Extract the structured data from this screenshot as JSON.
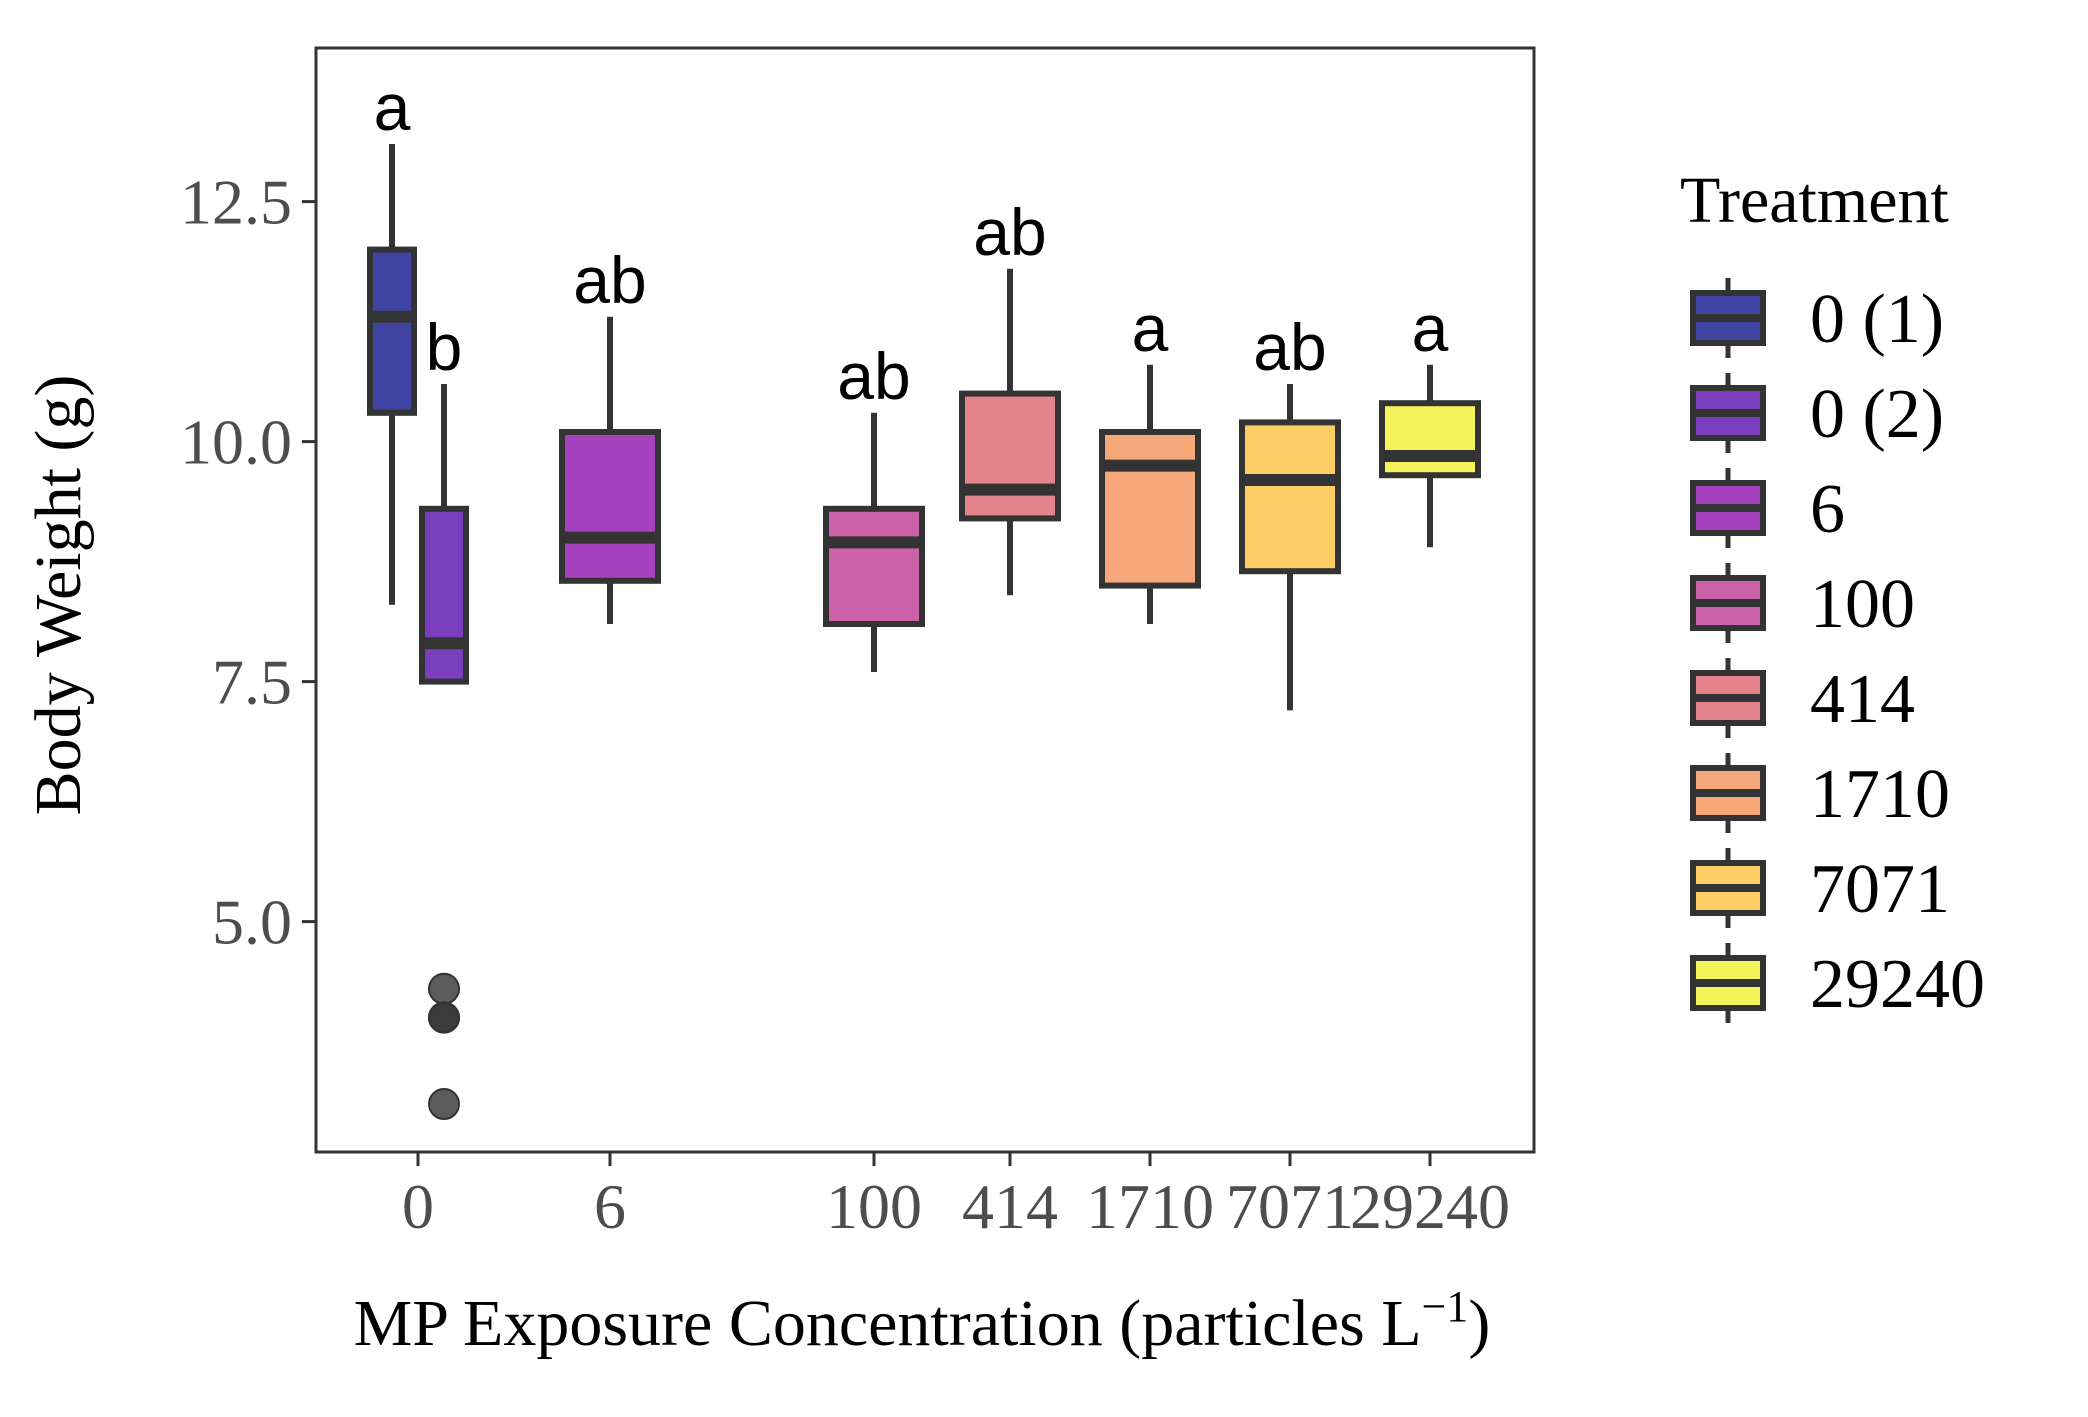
{
  "chart_data": {
    "type": "boxplot",
    "title": "",
    "xlabel": "MP Exposure Concentration (particles L",
    "xlabel_superscript": "−1",
    "xlabel_suffix": ")",
    "ylabel": "Body Weight (g)",
    "ylim": [
      2.6,
      14.1
    ],
    "y_ticks": [
      "5.0",
      "7.5",
      "10.0",
      "12.5"
    ],
    "x_ticks": [
      "0",
      "6",
      "100",
      "414",
      "1710",
      "7071",
      "29240"
    ],
    "grid": false,
    "legend": {
      "title": "Treatment",
      "position": "right"
    },
    "series": [
      {
        "name": "0 (1)",
        "x_tick": "0",
        "color": "#3f44a3",
        "whisker_low": 8.3,
        "q1": 10.3,
        "median": 11.3,
        "q3": 12.0,
        "whisker_high": 13.1,
        "outliers": [],
        "letter": "a"
      },
      {
        "name": "0 (2)",
        "x_tick": "0",
        "color": "#7b3fbd",
        "whisker_low": 7.5,
        "q1": 7.5,
        "median": 7.9,
        "q3": 9.3,
        "whisker_high": 10.6,
        "outliers": [
          4.3,
          4.0,
          4.0,
          3.1
        ],
        "letter": "b"
      },
      {
        "name": "6",
        "x_tick": "6",
        "color": "#a641bd",
        "whisker_low": 8.1,
        "q1": 8.55,
        "median": 9.0,
        "q3": 10.1,
        "whisker_high": 11.3,
        "outliers": [],
        "letter": "ab"
      },
      {
        "name": "100",
        "x_tick": "100",
        "color": "#cc63a8",
        "whisker_low": 7.6,
        "q1": 8.1,
        "median": 8.95,
        "q3": 9.3,
        "whisker_high": 10.3,
        "outliers": [],
        "letter": "ab"
      },
      {
        "name": "414",
        "x_tick": "414",
        "color": "#e5838c",
        "whisker_low": 8.4,
        "q1": 9.2,
        "median": 9.5,
        "q3": 10.5,
        "whisker_high": 11.8,
        "outliers": [],
        "letter": "ab"
      },
      {
        "name": "1710",
        "x_tick": "1710",
        "color": "#f5a77a",
        "whisker_low": 8.1,
        "q1": 8.5,
        "median": 9.75,
        "q3": 10.1,
        "whisker_high": 10.8,
        "outliers": [],
        "letter": "a"
      },
      {
        "name": "7071",
        "x_tick": "7071",
        "color": "#fccd64",
        "whisker_low": 7.2,
        "q1": 8.65,
        "median": 9.6,
        "q3": 10.2,
        "whisker_high": 10.6,
        "outliers": [],
        "letter": "ab"
      },
      {
        "name": "29240",
        "x_tick": "29240",
        "color": "#f2f45a",
        "whisker_low": 8.9,
        "q1": 9.65,
        "median": 9.85,
        "q3": 10.4,
        "whisker_high": 10.8,
        "outliers": [],
        "letter": "a"
      }
    ]
  }
}
